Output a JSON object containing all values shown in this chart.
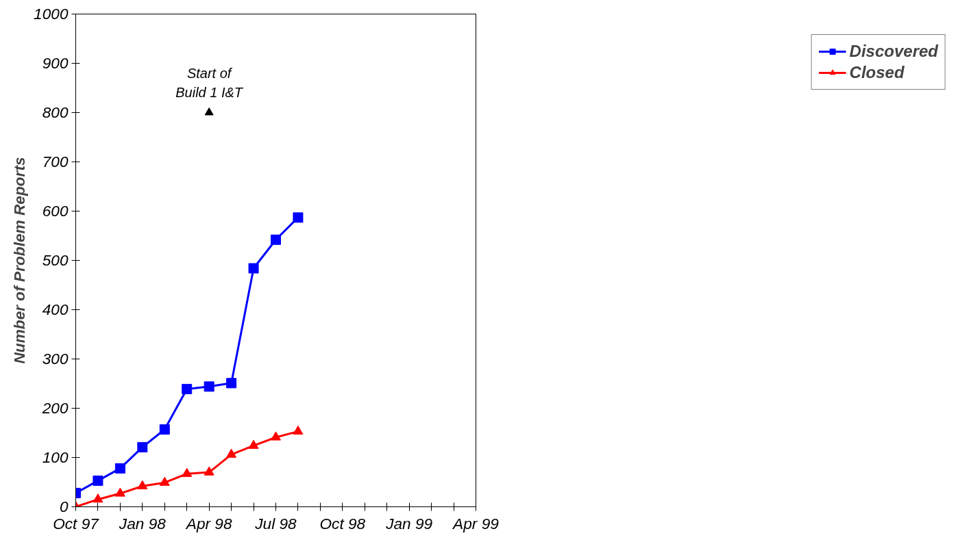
{
  "chart_data": {
    "type": "line",
    "ylabel": "Number of Problem Reports",
    "x": [
      "1997-10",
      "1997-11",
      "1997-12",
      "1998-01",
      "1998-02",
      "1998-03",
      "1998-04",
      "1998-05",
      "1998-06",
      "1998-07",
      "1998-08"
    ],
    "series": [
      {
        "name": "Discovered",
        "color": "#0000ff",
        "marker": "square",
        "values": [
          28,
          53,
          78,
          121,
          157,
          239,
          244,
          251,
          484,
          542,
          587
        ]
      },
      {
        "name": "Closed",
        "color": "#ff0000",
        "marker": "triangle",
        "values": [
          0,
          15,
          27,
          42,
          49,
          67,
          70,
          106,
          124,
          141,
          153
        ]
      }
    ],
    "xlim": [
      "1997-10",
      "1999-04"
    ],
    "xticks": [
      {
        "value": "1997-10",
        "label": "Oct 97"
      },
      {
        "value": "1997-11",
        "label": null
      },
      {
        "value": "1997-12",
        "label": null
      },
      {
        "value": "1998-01",
        "label": "Jan 98"
      },
      {
        "value": "1998-02",
        "label": null
      },
      {
        "value": "1998-03",
        "label": null
      },
      {
        "value": "1998-04",
        "label": "Apr 98"
      },
      {
        "value": "1998-05",
        "label": null
      },
      {
        "value": "1998-06",
        "label": null
      },
      {
        "value": "1998-07",
        "label": "Jul 98"
      },
      {
        "value": "1998-08",
        "label": null
      },
      {
        "value": "1998-09",
        "label": null
      },
      {
        "value": "1998-10",
        "label": "Oct 98"
      },
      {
        "value": "1998-11",
        "label": null
      },
      {
        "value": "1998-12",
        "label": null
      },
      {
        "value": "1999-01",
        "label": "Jan 99"
      },
      {
        "value": "1999-02",
        "label": null
      },
      {
        "value": "1999-03",
        "label": null
      },
      {
        "value": "1999-04",
        "label": "Apr 99"
      }
    ],
    "ylim": [
      0,
      1000
    ],
    "yticks": [
      0,
      100,
      200,
      300,
      400,
      500,
      600,
      700,
      800,
      900,
      1000
    ],
    "annotations": [
      {
        "text": "Start of\nBuild 1 I&T",
        "x": "1998-04",
        "y": 800
      }
    ],
    "grid": false,
    "legend": "right",
    "line_style": "solid"
  }
}
